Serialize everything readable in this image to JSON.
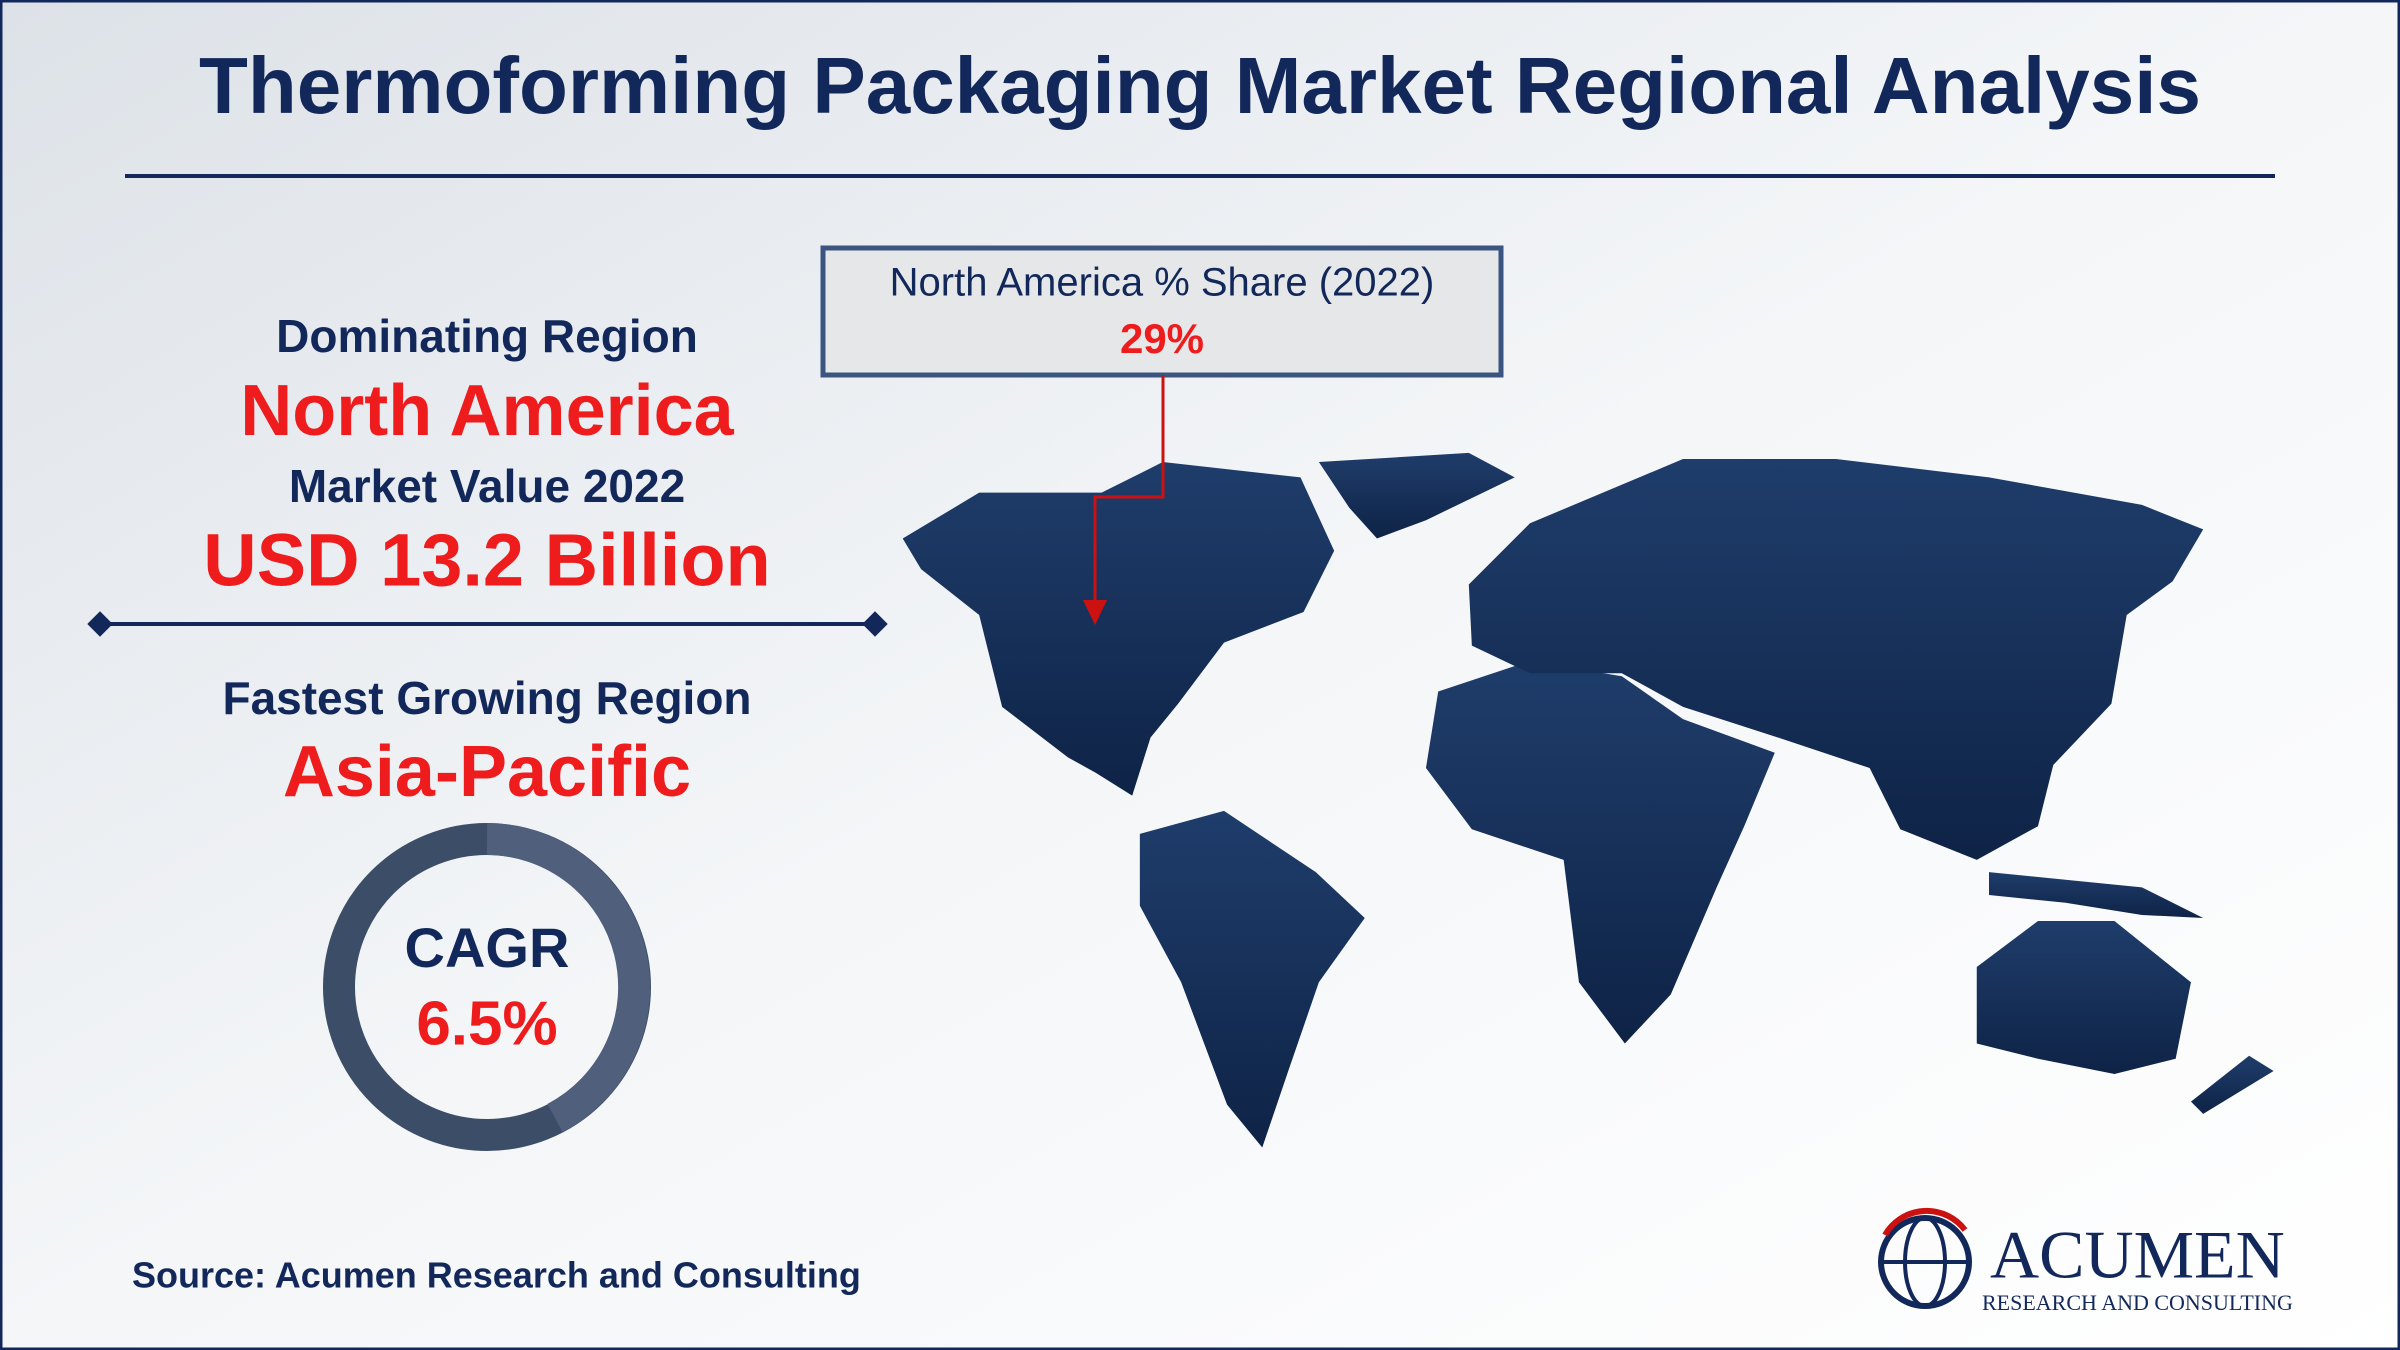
{
  "header": {
    "title": "Thermoforming Packaging Market Regional Analysis"
  },
  "dominating": {
    "heading": "Dominating Region",
    "region": "North America"
  },
  "market_value": {
    "heading": "Market Value 2022",
    "value": "USD 13.2 Billion"
  },
  "fastest": {
    "heading": "Fastest Growing Region",
    "region": "Asia-Pacific"
  },
  "cagr": {
    "label": "CAGR",
    "value": "6.5%"
  },
  "callout": {
    "title": "North America % Share (2022)",
    "value": "29%"
  },
  "source": "Source: Acumen Research and Consulting",
  "logo": {
    "name": "ACUMEN",
    "tagline": "RESEARCH AND CONSULTING"
  }
}
